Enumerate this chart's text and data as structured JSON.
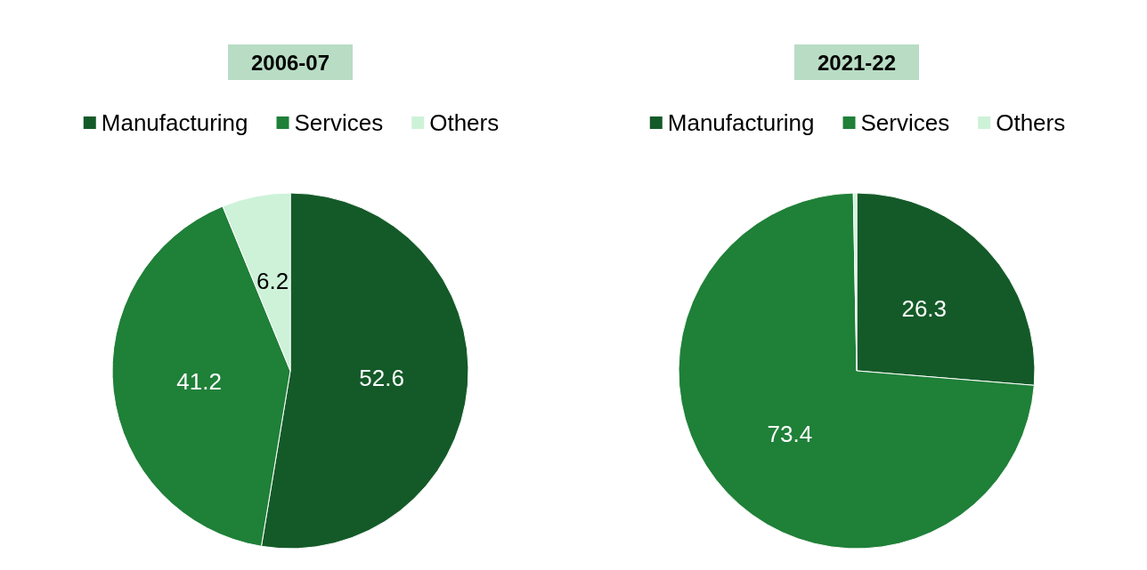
{
  "chart_data": [
    {
      "type": "pie",
      "title": "2006-07",
      "categories": [
        "Manufacturing",
        "Services",
        "Others"
      ],
      "values": [
        52.6,
        41.2,
        6.2
      ],
      "colors": [
        "#145a28",
        "#1f8038",
        "#cdf2d8"
      ],
      "legend": "top",
      "data_labels": true
    },
    {
      "type": "pie",
      "title": "2021-22",
      "categories": [
        "Manufacturing",
        "Services",
        "Others"
      ],
      "values": [
        26.3,
        73.4,
        0.3
      ],
      "value_labels": [
        "26.3",
        "73.4",
        null
      ],
      "colors": [
        "#145a28",
        "#1f8038",
        "#cdf2d8"
      ],
      "legend": "top"
    }
  ]
}
